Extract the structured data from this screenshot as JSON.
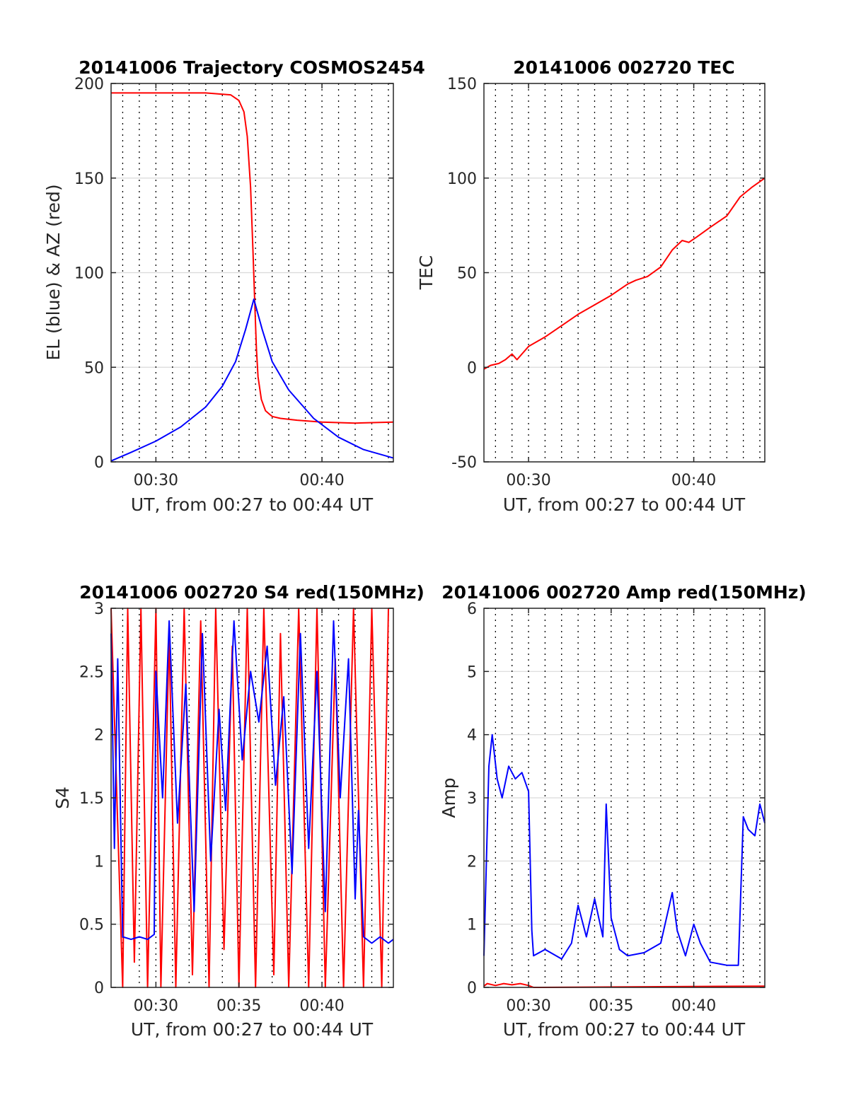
{
  "figure": {
    "colors": {
      "red": "#ff0000",
      "blue": "#0000ff",
      "grid": "#d9d9d9",
      "axis": "#262626"
    }
  },
  "chart_data": [
    {
      "id": "trajectory",
      "type": "line",
      "title": "20141006 Trajectory COSMOS2454",
      "xlabel": "UT, from 00:27 to 00:44 UT",
      "ylabel": "EL (blue) & AZ (red)",
      "x_unit": "minutes after 00:00 UT",
      "xlim": [
        27.3,
        44.3
      ],
      "ylim": [
        0,
        200
      ],
      "yticks": [
        0,
        50,
        100,
        150,
        200
      ],
      "xticks": [
        {
          "value": 30,
          "label": "00:30"
        },
        {
          "value": 40,
          "label": "00:40"
        }
      ],
      "series": [
        {
          "color": "#ff0000",
          "x": [
            27.3,
            30,
            33,
            34.5,
            35.0,
            35.3,
            35.5,
            35.7,
            35.85,
            35.95,
            36.05,
            36.15,
            36.35,
            36.6,
            37.0,
            37.5,
            38.5,
            40,
            42,
            44.3
          ],
          "y": [
            195,
            195,
            195,
            194,
            191,
            185,
            172,
            145,
            110,
            85,
            60,
            45,
            33,
            27,
            24,
            23,
            22,
            21,
            20.5,
            21
          ]
        },
        {
          "color": "#0000ff",
          "x": [
            27.3,
            28.5,
            30,
            31.5,
            33,
            34,
            34.8,
            35.4,
            35.9,
            36.4,
            37,
            38,
            39.5,
            41,
            42.5,
            44.3
          ],
          "y": [
            0.5,
            5,
            11,
            18.5,
            29,
            40,
            53,
            70,
            86,
            70,
            53,
            38,
            23,
            13,
            6.5,
            2
          ]
        }
      ]
    },
    {
      "id": "tec",
      "type": "line",
      "title": "20141006 002720 TEC",
      "xlabel": "UT, from 00:27 to 00:44 UT",
      "ylabel": "TEC",
      "x_unit": "minutes after 00:00 UT",
      "xlim": [
        27.3,
        44.3
      ],
      "ylim": [
        -50,
        150
      ],
      "yticks": [
        -50,
        0,
        50,
        100,
        150
      ],
      "xticks": [
        {
          "value": 30,
          "label": "00:30"
        },
        {
          "value": 40,
          "label": "00:40"
        }
      ],
      "series": [
        {
          "color": "#ff0000",
          "x": [
            27.3,
            27.7,
            28.2,
            28.6,
            29.0,
            29.3,
            29.6,
            30.0,
            31.0,
            32.0,
            33.0,
            34.0,
            35.0,
            36.0,
            36.5,
            37.2,
            38.0,
            38.7,
            39.3,
            39.7,
            40.2,
            41.0,
            42.0,
            42.8,
            43.5,
            44.3
          ],
          "y": [
            -1,
            1,
            2,
            4,
            7,
            4,
            7,
            11,
            16,
            22,
            28,
            33,
            38,
            44,
            46,
            48,
            53,
            62,
            67,
            66,
            69,
            74,
            80,
            90,
            95,
            100
          ]
        }
      ]
    },
    {
      "id": "s4",
      "type": "line",
      "title": "20141006 002720 S4 red(150MHz)",
      "xlabel": "UT, from 00:27 to 00:44 UT",
      "ylabel": "S4",
      "x_unit": "minutes after 00:00 UT",
      "xlim": [
        27.3,
        44.3
      ],
      "ylim": [
        0,
        3
      ],
      "yticks": [
        0,
        0.5,
        1,
        1.5,
        2,
        2.5,
        3
      ],
      "xticks": [
        {
          "value": 30,
          "label": "00:30"
        },
        {
          "value": 35,
          "label": "00:35"
        },
        {
          "value": 40,
          "label": "00:40"
        }
      ],
      "series": [
        {
          "color": "#ff0000",
          "note": "values oscillate between 0 and 3 (clipped) over almost the whole interval",
          "x": [
            27.3,
            28.0,
            28.3,
            28.7,
            29.1,
            29.5,
            30.0,
            30.3,
            30.8,
            31.2,
            31.7,
            32.2,
            32.7,
            33.2,
            33.6,
            34.1,
            34.6,
            35.0,
            35.5,
            36.0,
            36.5,
            37.1,
            37.5,
            38.0,
            38.6,
            39.2,
            39.7,
            40.2,
            40.8,
            41.3,
            41.9,
            42.5,
            43.0,
            43.6,
            44.0
          ],
          "y": [
            3,
            0,
            3,
            0.2,
            3,
            0,
            3,
            0,
            2.8,
            0,
            3,
            0.1,
            2.9,
            0,
            3,
            0.3,
            2.7,
            0,
            3,
            0,
            3,
            0.1,
            2.8,
            0,
            3,
            0,
            3,
            0,
            2.6,
            0,
            3,
            0,
            3,
            0,
            3
          ]
        },
        {
          "color": "#0000ff",
          "note": "about 0.4 during quiet periods, 1 to 3 while the signal is disturbed",
          "x": [
            27.3,
            27.5,
            27.7,
            28.0,
            28.5,
            29.0,
            29.5,
            29.9,
            30.0,
            30.4,
            30.8,
            31.3,
            31.8,
            32.3,
            32.8,
            33.3,
            33.8,
            34.2,
            34.7,
            35.2,
            35.7,
            36.2,
            36.7,
            37.2,
            37.7,
            38.2,
            38.7,
            39.2,
            39.7,
            40.2,
            40.7,
            41.1,
            41.6,
            42.0,
            42.2,
            42.5,
            43.0,
            43.5,
            44.0,
            44.3
          ],
          "y": [
            2.8,
            1.1,
            2.6,
            0.4,
            0.38,
            0.4,
            0.38,
            0.42,
            2.5,
            1.5,
            2.9,
            1.3,
            2.4,
            0.6,
            2.8,
            1.0,
            2.2,
            1.4,
            2.9,
            1.8,
            2.5,
            2.1,
            2.7,
            1.6,
            2.3,
            0.9,
            2.8,
            1.1,
            2.5,
            0.6,
            2.9,
            1.5,
            2.6,
            0.7,
            1.4,
            0.4,
            0.35,
            0.4,
            0.35,
            0.38
          ]
        }
      ]
    },
    {
      "id": "amp",
      "type": "line",
      "title": "20141006 002720 Amp red(150MHz)",
      "xlabel": "UT, from 00:27 to 00:44 UT",
      "ylabel": "Amp",
      "x_unit": "minutes after 00:00 UT",
      "xlim": [
        27.3,
        44.3
      ],
      "ylim": [
        0,
        6
      ],
      "yticks": [
        0,
        1,
        2,
        3,
        4,
        5,
        6
      ],
      "xticks": [
        {
          "value": 30,
          "label": "00:30"
        },
        {
          "value": 35,
          "label": "00:35"
        },
        {
          "value": 40,
          "label": "00:40"
        }
      ],
      "series": [
        {
          "color": "#0000ff",
          "note": "rapid fluctuation; listed points are the upper envelope",
          "x": [
            27.3,
            27.6,
            27.8,
            28.1,
            28.4,
            28.8,
            29.2,
            29.6,
            30.0,
            30.2,
            30.3,
            31.0,
            32.0,
            32.6,
            33.0,
            33.5,
            34.0,
            34.5,
            34.7,
            35.0,
            35.5,
            36.0,
            37.0,
            38.0,
            38.7,
            39.0,
            39.5,
            40.0,
            40.4,
            41.0,
            42.0,
            42.7,
            43.0,
            43.3,
            43.7,
            44.0,
            44.3
          ],
          "y": [
            0.5,
            3.5,
            4.0,
            3.3,
            3.0,
            3.5,
            3.3,
            3.4,
            3.1,
            0.9,
            0.5,
            0.6,
            0.45,
            0.7,
            1.3,
            0.8,
            1.4,
            0.8,
            2.9,
            1.1,
            0.6,
            0.5,
            0.55,
            0.7,
            1.5,
            0.9,
            0.5,
            1.0,
            0.7,
            0.4,
            0.35,
            0.35,
            2.7,
            2.5,
            2.4,
            2.9,
            2.6
          ]
        },
        {
          "color": "#ff0000",
          "x": [
            27.3,
            27.5,
            28.0,
            28.5,
            29.0,
            29.5,
            30.0,
            30.3,
            44.3
          ],
          "y": [
            0.02,
            0.06,
            0.03,
            0.06,
            0.04,
            0.06,
            0.03,
            0.0,
            0.02
          ]
        }
      ]
    }
  ]
}
